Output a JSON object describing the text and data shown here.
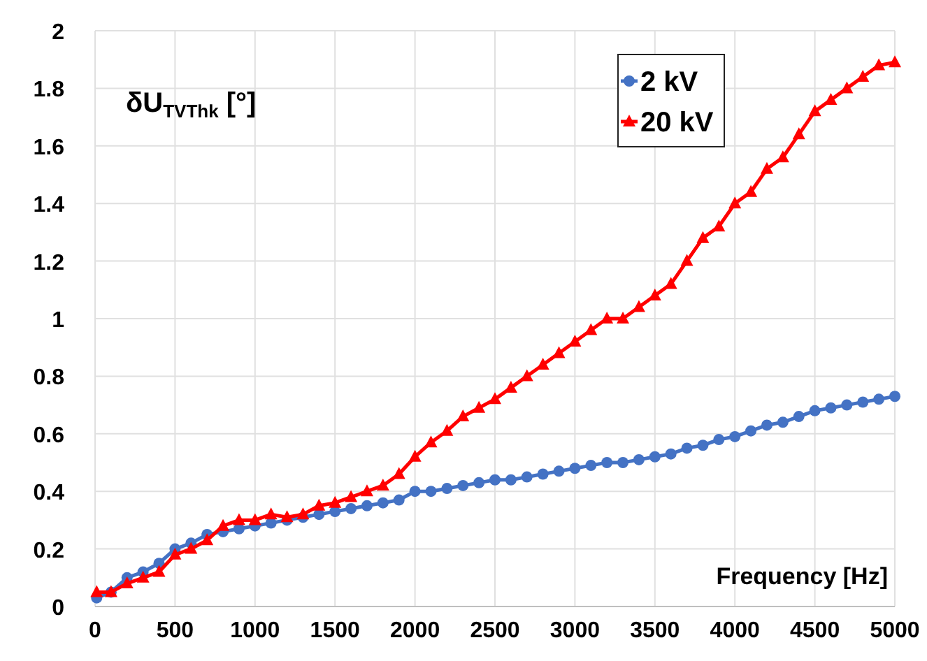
{
  "chart_data": {
    "type": "line",
    "xlabel": "Frequency [Hz]",
    "ylabel": "δU$_{TVThk}$ [°]",
    "x": [
      10,
      100,
      200,
      300,
      400,
      500,
      600,
      700,
      800,
      900,
      1000,
      1100,
      1200,
      1300,
      1400,
      1500,
      1600,
      1700,
      1800,
      1900,
      2000,
      2100,
      2200,
      2300,
      2400,
      2500,
      2600,
      2700,
      2800,
      2900,
      3000,
      3100,
      3200,
      3300,
      3400,
      3500,
      3600,
      3700,
      3800,
      3900,
      4000,
      4100,
      4200,
      4300,
      4400,
      4500,
      4600,
      4700,
      4800,
      4900,
      5000
    ],
    "series": [
      {
        "name": "2 kV",
        "color": "#4472c4",
        "marker": "circle",
        "values": [
          0.03,
          0.05,
          0.1,
          0.12,
          0.15,
          0.2,
          0.22,
          0.25,
          0.26,
          0.27,
          0.28,
          0.29,
          0.3,
          0.31,
          0.32,
          0.33,
          0.34,
          0.35,
          0.36,
          0.37,
          0.4,
          0.4,
          0.41,
          0.42,
          0.43,
          0.44,
          0.44,
          0.45,
          0.46,
          0.47,
          0.48,
          0.49,
          0.5,
          0.5,
          0.51,
          0.52,
          0.53,
          0.55,
          0.56,
          0.58,
          0.59,
          0.61,
          0.63,
          0.64,
          0.66,
          0.68,
          0.69,
          0.7,
          0.71,
          0.72,
          0.73
        ]
      },
      {
        "name": "20 kV",
        "color": "#ff0000",
        "marker": "triangle",
        "values": [
          0.05,
          0.05,
          0.08,
          0.1,
          0.12,
          0.18,
          0.2,
          0.23,
          0.28,
          0.3,
          0.3,
          0.32,
          0.31,
          0.32,
          0.35,
          0.36,
          0.38,
          0.4,
          0.42,
          0.46,
          0.52,
          0.57,
          0.61,
          0.66,
          0.69,
          0.72,
          0.76,
          0.8,
          0.84,
          0.88,
          0.92,
          0.96,
          1.0,
          1.0,
          1.04,
          1.08,
          1.12,
          1.2,
          1.28,
          1.32,
          1.4,
          1.44,
          1.52,
          1.56,
          1.64,
          1.72,
          1.76,
          1.8,
          1.84,
          1.88,
          1.89
        ]
      }
    ],
    "xlim": [
      0,
      5000
    ],
    "xticks": [
      0,
      500,
      1000,
      1500,
      2000,
      2500,
      3000,
      3500,
      4000,
      4500,
      5000
    ],
    "ylim": [
      0,
      2
    ],
    "yticks": [
      0,
      0.2,
      0.4,
      0.6,
      0.8,
      1,
      1.2,
      1.4,
      1.6,
      1.8,
      2
    ],
    "grid": true,
    "legend": "top right",
    "line_style": "solid"
  }
}
